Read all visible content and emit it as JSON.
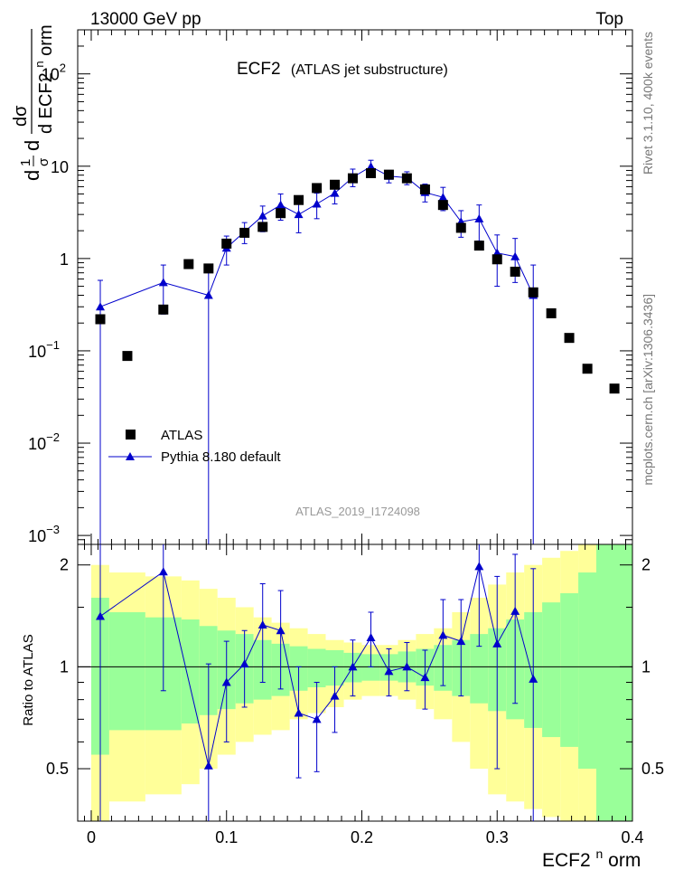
{
  "header": {
    "left": "13000 GeV pp",
    "right": "Top"
  },
  "side_labels": {
    "rivet": "Rivet 3.1.10,  400k events",
    "mcplots": "mcplots.cern.ch [arXiv:1306.3436]"
  },
  "colors": {
    "data": "#000000",
    "mc": "#0000cc",
    "band_inner": "#99ff99",
    "band_outer": "#ffff99"
  },
  "chart_data": [
    {
      "type": "scatter",
      "title": "ECF2",
      "subtitle": "(ATLAS jet substructure)",
      "watermark": "ATLAS_2019_I1724098",
      "ylabel_parts": [
        "d",
        "1",
        "σ",
        "d",
        "dσ",
        "d ECF2",
        "n",
        "orm"
      ],
      "yscale": "log",
      "xlim": [
        -0.01,
        0.4
      ],
      "ylim": [
        0.0008,
        300
      ],
      "y_ticks": [
        {
          "value": 0.001,
          "base": "10",
          "exp": "−3"
        },
        {
          "value": 0.01,
          "base": "10",
          "exp": "−2"
        },
        {
          "value": 0.1,
          "base": "10",
          "exp": "−1"
        },
        {
          "value": 1,
          "base": "1",
          "exp": ""
        },
        {
          "value": 10,
          "base": "10",
          "exp": ""
        },
        {
          "value": 100,
          "base": "10",
          "exp": "2"
        }
      ],
      "legend_position": "bottom-left",
      "series": [
        {
          "name": "ATLAS",
          "marker": "square",
          "points": [
            {
              "x": 0.0067,
              "y": 0.22
            },
            {
              "x": 0.0267,
              "y": 0.088
            },
            {
              "x": 0.0533,
              "y": 0.28
            },
            {
              "x": 0.072,
              "y": 0.87
            },
            {
              "x": 0.0867,
              "y": 0.78
            },
            {
              "x": 0.1,
              "y": 1.45
            },
            {
              "x": 0.1133,
              "y": 1.9
            },
            {
              "x": 0.1267,
              "y": 2.2
            },
            {
              "x": 0.14,
              "y": 3.1
            },
            {
              "x": 0.1533,
              "y": 4.3
            },
            {
              "x": 0.1667,
              "y": 5.8
            },
            {
              "x": 0.18,
              "y": 6.3
            },
            {
              "x": 0.1933,
              "y": 7.4
            },
            {
              "x": 0.2067,
              "y": 8.4
            },
            {
              "x": 0.22,
              "y": 8.1
            },
            {
              "x": 0.2333,
              "y": 7.4
            },
            {
              "x": 0.2467,
              "y": 5.6
            },
            {
              "x": 0.26,
              "y": 3.8
            },
            {
              "x": 0.2733,
              "y": 2.15
            },
            {
              "x": 0.2867,
              "y": 1.38
            },
            {
              "x": 0.3,
              "y": 0.98
            },
            {
              "x": 0.3133,
              "y": 0.72
            },
            {
              "x": 0.3267,
              "y": 0.43
            },
            {
              "x": 0.34,
              "y": 0.255
            },
            {
              "x": 0.3533,
              "y": 0.138
            },
            {
              "x": 0.3667,
              "y": 0.064
            },
            {
              "x": 0.3867,
              "y": 0.039
            }
          ]
        },
        {
          "name": "Pythia 8.180 default",
          "marker": "triangle",
          "points": [
            {
              "x": 0.0067,
              "y": 0.3,
              "ylo": 0.0005,
              "yhi": 0.58
            },
            {
              "x": 0.0533,
              "y": 0.55,
              "ylo": 0.25,
              "yhi": 0.85
            },
            {
              "x": 0.0867,
              "y": 0.4,
              "ylo": 0.0005,
              "yhi": 0.78
            },
            {
              "x": 0.1,
              "y": 1.3,
              "ylo": 0.85,
              "yhi": 1.75
            },
            {
              "x": 0.1133,
              "y": 1.95,
              "ylo": 1.45,
              "yhi": 2.45
            },
            {
              "x": 0.1267,
              "y": 2.9,
              "ylo": 1.95,
              "yhi": 3.7
            },
            {
              "x": 0.14,
              "y": 3.8,
              "ylo": 2.6,
              "yhi": 5.0
            },
            {
              "x": 0.1533,
              "y": 3.0,
              "ylo": 1.9,
              "yhi": 4.2
            },
            {
              "x": 0.1667,
              "y": 3.9,
              "ylo": 2.7,
              "yhi": 5.1
            },
            {
              "x": 0.18,
              "y": 5.1,
              "ylo": 3.9,
              "yhi": 6.5
            },
            {
              "x": 0.1933,
              "y": 7.6,
              "ylo": 6.0,
              "yhi": 9.3
            },
            {
              "x": 0.2067,
              "y": 9.9,
              "ylo": 8.3,
              "yhi": 11.6
            },
            {
              "x": 0.22,
              "y": 7.8,
              "ylo": 6.6,
              "yhi": 9.0
            },
            {
              "x": 0.2333,
              "y": 7.5,
              "ylo": 6.3,
              "yhi": 8.7
            },
            {
              "x": 0.2467,
              "y": 5.2,
              "ylo": 4.1,
              "yhi": 6.4
            },
            {
              "x": 0.26,
              "y": 4.6,
              "ylo": 3.3,
              "yhi": 5.9
            },
            {
              "x": 0.2733,
              "y": 2.5,
              "ylo": 1.7,
              "yhi": 3.3
            },
            {
              "x": 0.2867,
              "y": 2.7,
              "ylo": 1.55,
              "yhi": 3.8
            },
            {
              "x": 0.3,
              "y": 1.15,
              "ylo": 0.5,
              "yhi": 1.8
            },
            {
              "x": 0.3133,
              "y": 1.05,
              "ylo": 0.55,
              "yhi": 1.65
            },
            {
              "x": 0.3267,
              "y": 0.4,
              "ylo": 0.0005,
              "yhi": 0.85
            }
          ]
        }
      ]
    },
    {
      "type": "line",
      "ylabel": "Ratio to ATLAS",
      "xlabel_parts": [
        "ECF2",
        "n",
        "orm"
      ],
      "xlim": [
        -0.01,
        0.4
      ],
      "ylim": [
        0.35,
        2.3
      ],
      "x_ticks": [
        "0",
        "0.1",
        "0.2",
        "0.3",
        "0.4"
      ],
      "y_ticks": [
        "0.5",
        "1",
        "2"
      ],
      "bands": {
        "edges": [
          0,
          0.0133,
          0.04,
          0.0667,
          0.08,
          0.0933,
          0.1067,
          0.12,
          0.1333,
          0.1467,
          0.16,
          0.1733,
          0.1867,
          0.2,
          0.2133,
          0.2267,
          0.24,
          0.2533,
          0.2667,
          0.28,
          0.2933,
          0.3067,
          0.32,
          0.3333,
          0.3467,
          0.36,
          0.3733,
          0.4
        ],
        "inner_lo": [
          0.55,
          0.65,
          0.65,
          0.68,
          0.72,
          0.75,
          0.78,
          0.8,
          0.82,
          0.85,
          0.87,
          0.88,
          0.9,
          0.91,
          0.91,
          0.9,
          0.88,
          0.85,
          0.82,
          0.78,
          0.74,
          0.7,
          0.66,
          0.62,
          0.58,
          0.5,
          0.35
        ],
        "inner_hi": [
          1.6,
          1.45,
          1.4,
          1.38,
          1.32,
          1.28,
          1.25,
          1.2,
          1.17,
          1.15,
          1.13,
          1.12,
          1.1,
          1.09,
          1.09,
          1.11,
          1.13,
          1.16,
          1.2,
          1.25,
          1.3,
          1.38,
          1.45,
          1.55,
          1.65,
          1.9,
          2.3
        ],
        "outer_lo": [
          0.35,
          0.4,
          0.42,
          0.45,
          0.5,
          0.55,
          0.6,
          0.63,
          0.65,
          0.7,
          0.73,
          0.76,
          0.8,
          0.82,
          0.82,
          0.8,
          0.75,
          0.7,
          0.6,
          0.5,
          0.42,
          0.4,
          0.38,
          0.36,
          0.35,
          0.35,
          0.35
        ],
        "outer_hi": [
          2.0,
          1.9,
          1.85,
          1.8,
          1.7,
          1.6,
          1.5,
          1.4,
          1.35,
          1.3,
          1.25,
          1.2,
          1.18,
          1.16,
          1.16,
          1.2,
          1.25,
          1.3,
          1.45,
          1.6,
          1.75,
          1.9,
          2.0,
          2.1,
          2.2,
          2.3,
          2.3
        ]
      },
      "series": [
        {
          "name": "Pythia 8.180 default",
          "points": [
            {
              "x": 0.0067,
              "y": 1.41,
              "ylo": 0.35,
              "yhi": 2.3
            },
            {
              "x": 0.0533,
              "y": 1.91,
              "ylo": 0.85,
              "yhi": 2.3
            },
            {
              "x": 0.0867,
              "y": 0.51,
              "ylo": 0.35,
              "yhi": 1.02
            },
            {
              "x": 0.1,
              "y": 0.9,
              "ylo": 0.6,
              "yhi": 1.19
            },
            {
              "x": 0.1133,
              "y": 1.02,
              "ylo": 0.76,
              "yhi": 1.28
            },
            {
              "x": 0.1267,
              "y": 1.33,
              "ylo": 0.9,
              "yhi": 1.76
            },
            {
              "x": 0.14,
              "y": 1.28,
              "ylo": 0.86,
              "yhi": 1.68
            },
            {
              "x": 0.1533,
              "y": 0.73,
              "ylo": 0.47,
              "yhi": 1.0
            },
            {
              "x": 0.1667,
              "y": 0.7,
              "ylo": 0.49,
              "yhi": 0.9
            },
            {
              "x": 0.18,
              "y": 0.82,
              "ylo": 0.64,
              "yhi": 1.0
            },
            {
              "x": 0.1933,
              "y": 1.0,
              "ylo": 0.82,
              "yhi": 1.2
            },
            {
              "x": 0.2067,
              "y": 1.22,
              "ylo": 1.0,
              "yhi": 1.45
            },
            {
              "x": 0.22,
              "y": 0.97,
              "ylo": 0.82,
              "yhi": 1.13
            },
            {
              "x": 0.2333,
              "y": 1.0,
              "ylo": 0.85,
              "yhi": 1.18
            },
            {
              "x": 0.2467,
              "y": 0.93,
              "ylo": 0.75,
              "yhi": 1.12
            },
            {
              "x": 0.26,
              "y": 1.24,
              "ylo": 0.88,
              "yhi": 1.58
            },
            {
              "x": 0.2733,
              "y": 1.19,
              "ylo": 0.82,
              "yhi": 1.58
            },
            {
              "x": 0.2867,
              "y": 1.98,
              "ylo": 1.15,
              "yhi": 2.3
            },
            {
              "x": 0.3,
              "y": 1.17,
              "ylo": 0.5,
              "yhi": 1.85
            },
            {
              "x": 0.3133,
              "y": 1.46,
              "ylo": 0.78,
              "yhi": 2.15
            },
            {
              "x": 0.3267,
              "y": 0.92,
              "ylo": 0.35,
              "yhi": 1.95
            }
          ]
        }
      ]
    }
  ]
}
